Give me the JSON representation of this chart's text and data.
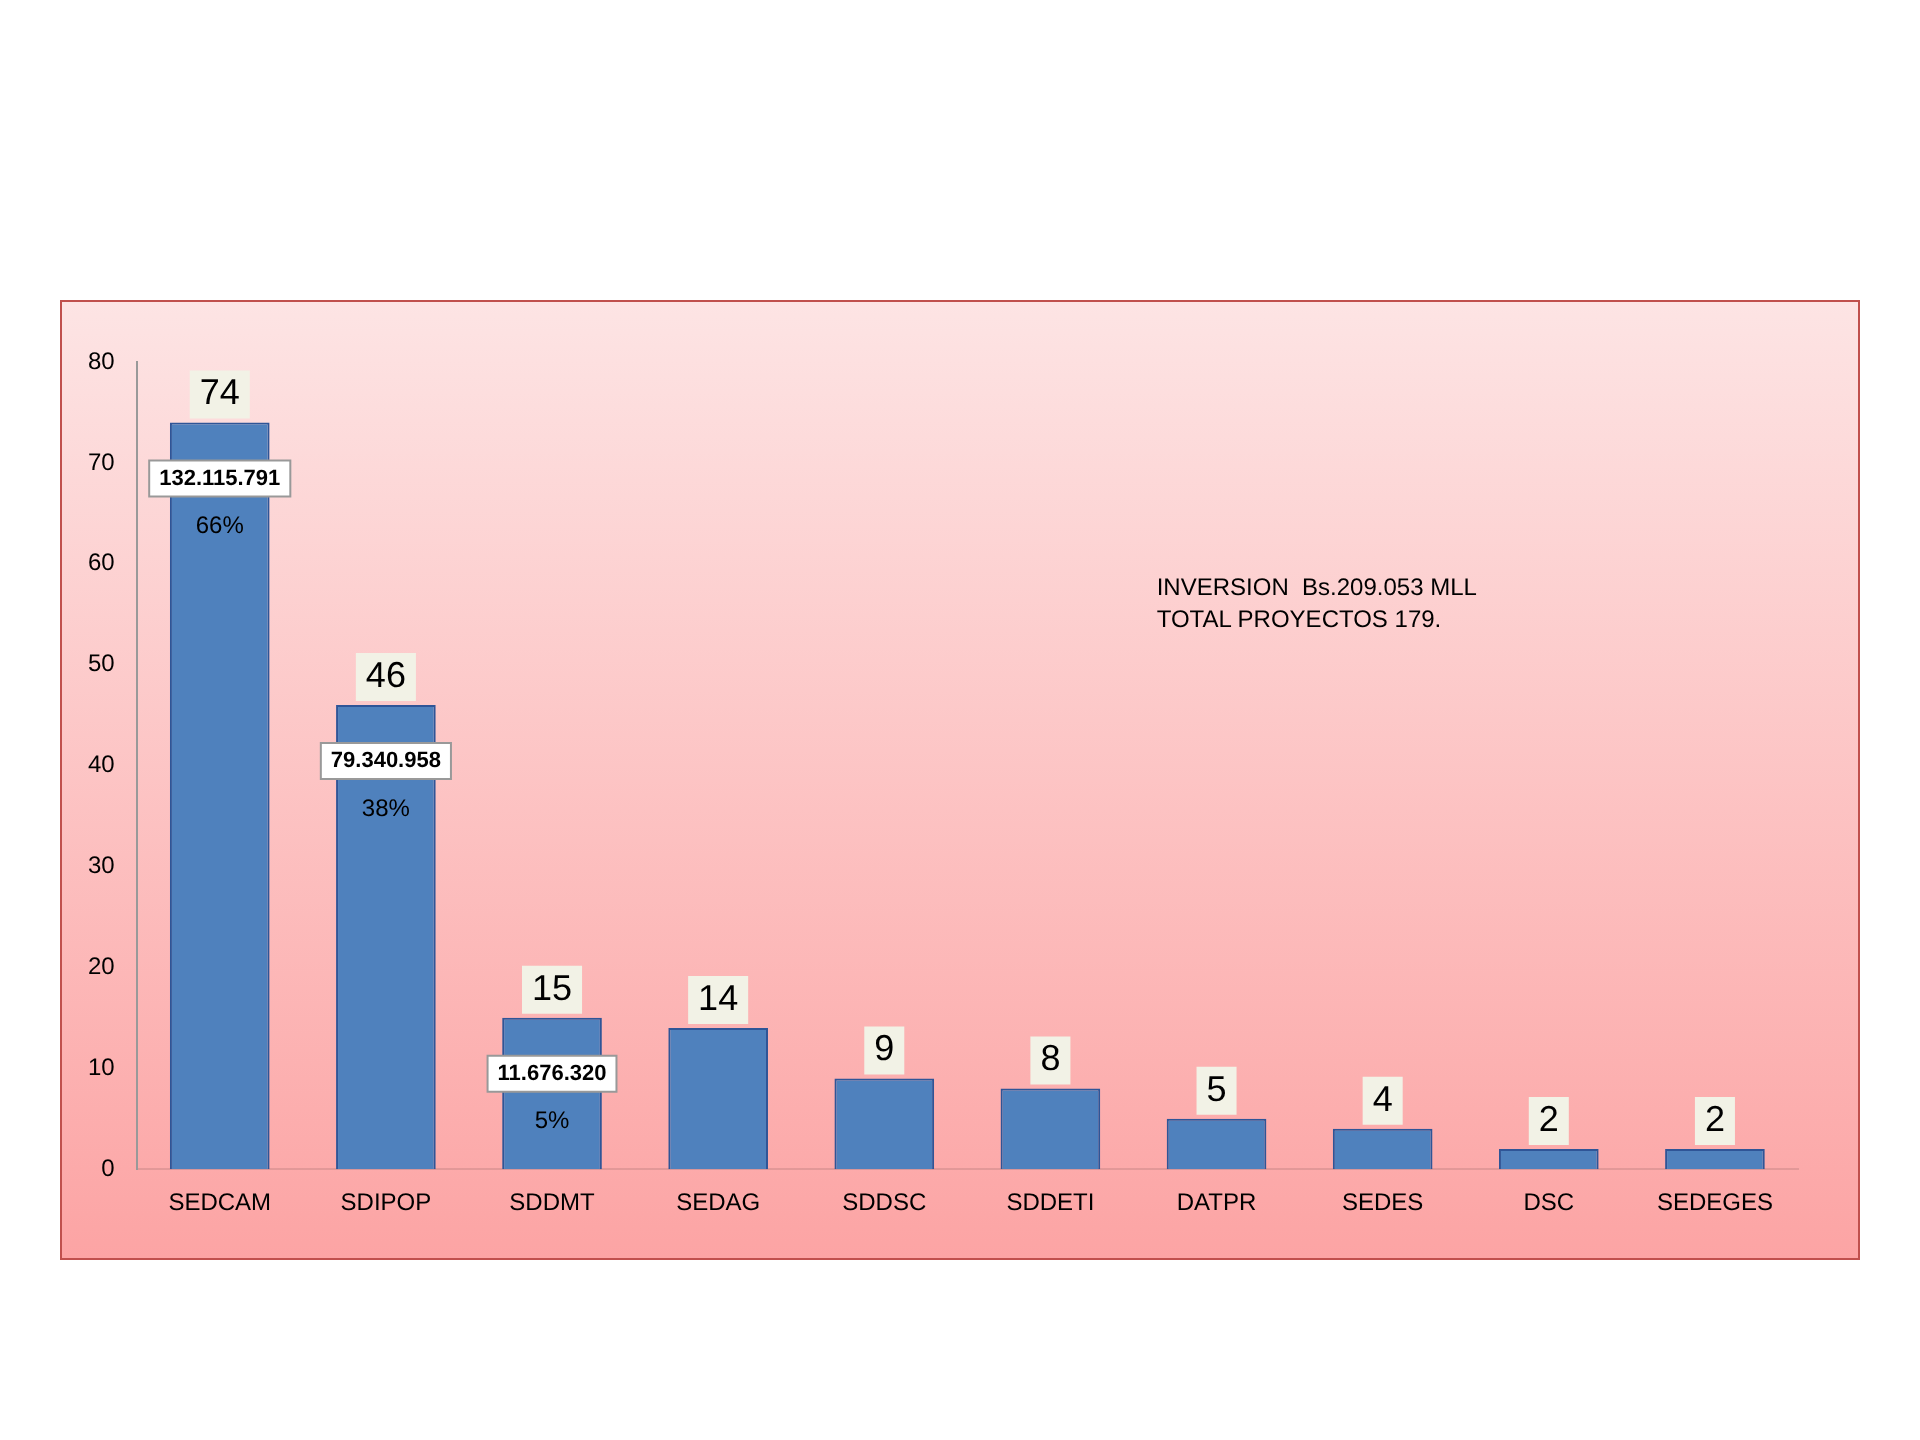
{
  "chart_data": {
    "type": "bar",
    "categories": [
      "SEDCAM",
      "SDIPOP",
      "SDDMT",
      "SEDAG",
      "SDDSC",
      "SDDETI",
      "DATPR",
      "SEDES",
      "DSC",
      "SEDEGES"
    ],
    "values": [
      74,
      46,
      15,
      14,
      9,
      8,
      5,
      4,
      2,
      2
    ],
    "color": "#4f81bd",
    "ylim": [
      0,
      80
    ],
    "yticks": [
      0,
      10,
      20,
      30,
      40,
      50,
      60,
      70,
      80
    ],
    "grid": false,
    "legend": false,
    "data_labels": true,
    "annotations": [
      "132.115.791",
      "66%",
      "79.340.958",
      "38%",
      "11.676.320",
      "5%",
      "INVERSION  Bs.209.053 MLL",
      "TOTAL PROYECTOS 179."
    ]
  }
}
